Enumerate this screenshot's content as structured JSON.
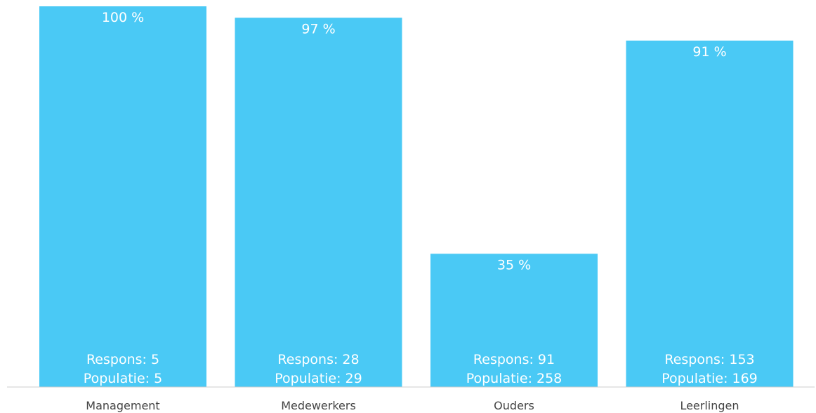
{
  "chart_data": {
    "type": "bar",
    "categories": [
      "Management",
      "Medewerkers",
      "Ouders",
      "Leerlingen"
    ],
    "values": [
      100,
      97,
      35,
      91
    ],
    "value_labels": [
      "100 %",
      "97 %",
      "35 %",
      "91 %"
    ],
    "respons": [
      "Respons: 5",
      "Respons: 28",
      "Respons: 91",
      "Respons: 153"
    ],
    "populatie": [
      "Populatie: 5",
      "Populatie: 29",
      "Populatie: 258",
      "Populatie: 169"
    ],
    "ylim": [
      0,
      100
    ],
    "bar_color": "#4ac9f5",
    "axis_color": "#cccccc",
    "grid": false,
    "title": "",
    "xlabel": "",
    "ylabel": ""
  }
}
